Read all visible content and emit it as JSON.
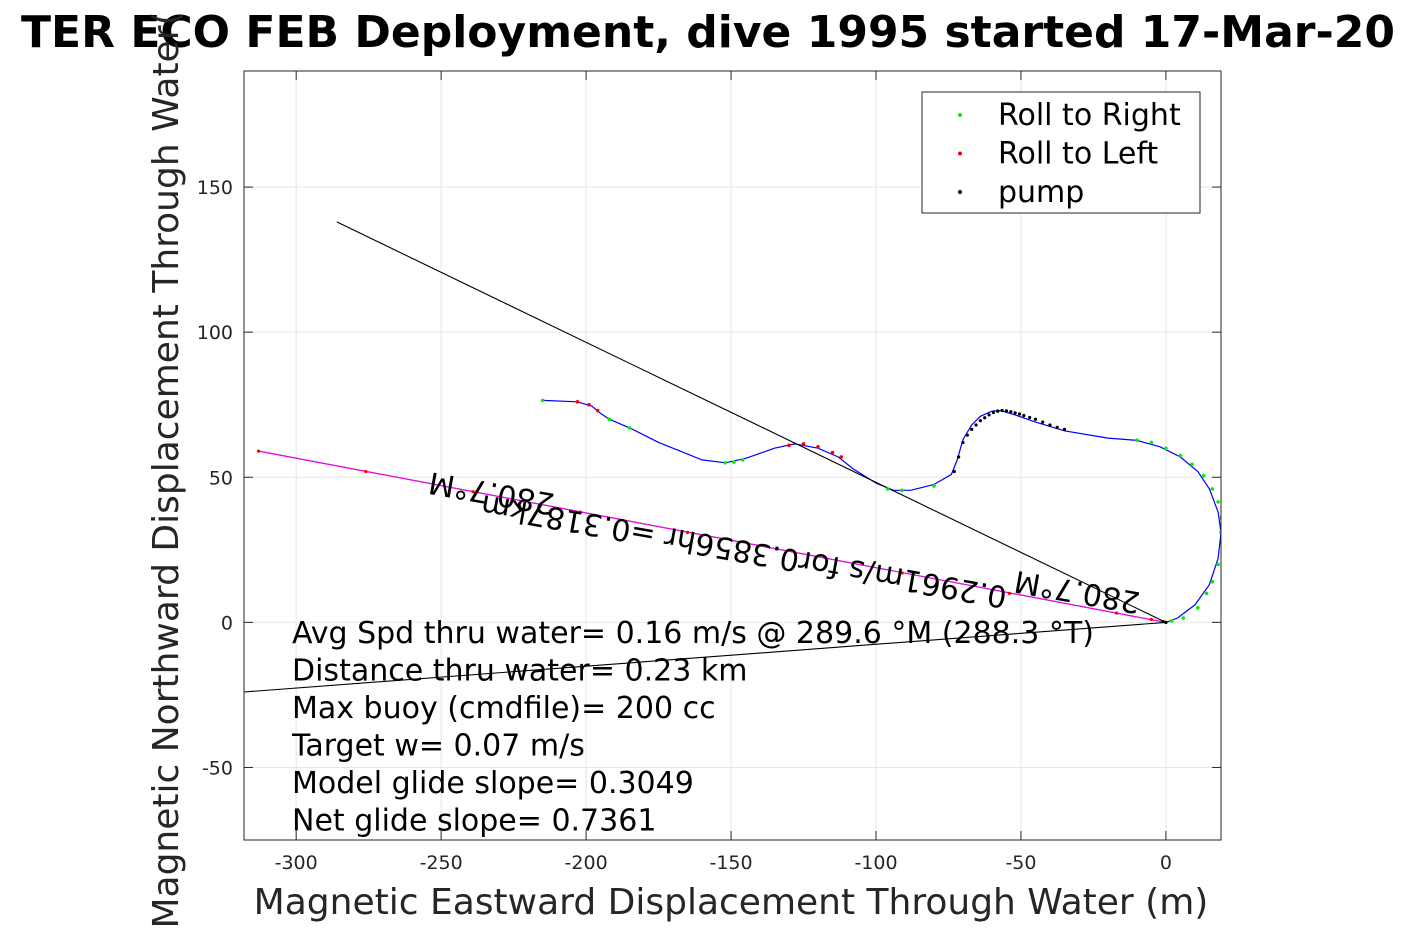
{
  "chart_data": {
    "type": "line",
    "title": "TER ECO FEB Deployment, dive 1995 started 17-Mar-20",
    "xlabel": "Magnetic Eastward Displacement Through Water (m)",
    "ylabel": "Magnetic Northward Displacement Through Water(",
    "xlim": [
      -318,
      19
    ],
    "ylim": [
      -75,
      190
    ],
    "xticks": [
      -300,
      -250,
      -200,
      -150,
      -100,
      -50,
      0
    ],
    "xtick_labels": [
      "-300",
      "-250",
      "-200",
      "-150",
      "-100",
      "-50",
      "0"
    ],
    "yticks": [
      -50,
      0,
      50,
      100,
      150
    ],
    "ytick_labels": [
      "-50",
      "0",
      "50",
      "100",
      "150"
    ],
    "grid": true,
    "legend": {
      "location": "top-right",
      "entries": [
        {
          "label": "Roll to Right",
          "color": "#00ee00"
        },
        {
          "label": "Roll to Left",
          "color": "#ff0000"
        },
        {
          "label": "pump",
          "color": "#000000"
        }
      ]
    },
    "series": [
      {
        "kind": "track",
        "color": "#0000ff",
        "x": [
          -215,
          -203,
          -198,
          -195,
          -192,
          -185,
          -175,
          -160,
          -152,
          -145,
          -135,
          -128,
          -120,
          -113,
          -108,
          -100,
          -94,
          -88,
          -80,
          -74,
          -72,
          -70,
          -67,
          -64,
          -60,
          -57,
          -52,
          -45,
          -35,
          -20,
          -10,
          -2,
          5,
          11,
          15,
          18,
          19,
          18,
          15,
          10,
          4,
          0
        ],
        "y": [
          76.5,
          76,
          74.5,
          72,
          70,
          67,
          62,
          56,
          55,
          56.5,
          60,
          61.5,
          60,
          57,
          53,
          48,
          45.5,
          45.5,
          47.5,
          51,
          56,
          63,
          68,
          71,
          72.8,
          73,
          71.5,
          69,
          66,
          63.5,
          62.7,
          60.5,
          57,
          52,
          46,
          38,
          31,
          22,
          13,
          6,
          1.5,
          0
        ]
      },
      {
        "kind": "heading-line",
        "color": "#000000",
        "x": [
          0,
          -286
        ],
        "y": [
          0,
          138
        ]
      },
      {
        "kind": "heading-line",
        "color": "#000000",
        "x": [
          0,
          -318
        ],
        "y": [
          0,
          -24
        ]
      },
      {
        "kind": "heading-line",
        "color": "#000000",
        "x": [
          0,
          -313
        ],
        "y": [
          0,
          59
        ]
      },
      {
        "kind": "heading-line",
        "color": "#ff00ff",
        "x": [
          0,
          -313
        ],
        "y": [
          0,
          59
        ]
      }
    ],
    "markers": {
      "roll_right": {
        "color": "#00ee00",
        "x": [
          -215,
          -192,
          -185,
          -152,
          -149,
          -146,
          -96,
          -91,
          -80,
          -58,
          -10,
          -5,
          0,
          5,
          9,
          13,
          16,
          18,
          19,
          19,
          18,
          16,
          14,
          11,
          6,
          2
        ],
        "y": [
          76.5,
          70,
          67,
          55,
          55.2,
          56,
          46,
          45.5,
          47,
          72.8,
          62.8,
          62,
          60,
          57.5,
          54.5,
          50.5,
          46,
          41.5,
          36,
          31,
          20,
          14,
          10,
          5,
          1.5,
          0.5
        ]
      },
      "roll_left": {
        "color": "#ff0000",
        "x": [
          -203,
          -199,
          -196,
          -130,
          -125,
          -120,
          -115,
          -112
        ],
        "y": [
          76,
          75,
          73,
          61,
          61.5,
          60.5,
          58.5,
          57
        ],
        "line_x": [
          -313,
          -276,
          -239,
          -202,
          -165,
          -128,
          -91,
          -54,
          -17,
          -5,
          0
        ],
        "line_y": [
          59,
          52,
          45,
          38,
          31,
          24,
          17,
          10,
          3.2,
          1,
          0
        ]
      },
      "pump": {
        "color": "#000000",
        "x": [
          -73,
          -71.5,
          -70,
          -68.5,
          -67,
          -65.5,
          -64,
          -62.5,
          -61,
          -59.5,
          -58,
          -56.5,
          -55,
          -53.5,
          -52,
          -50.5,
          -49,
          -47,
          -45,
          -42.5,
          -40,
          -37.5,
          -35,
          -1,
          0
        ],
        "y": [
          52,
          57,
          62,
          64.5,
          66.5,
          68,
          69.5,
          70.5,
          71.5,
          72.3,
          72.8,
          73,
          72.9,
          72.6,
          72.2,
          71.8,
          71.3,
          70.6,
          70,
          69,
          68,
          67.2,
          66.5,
          0.3,
          0
        ]
      }
    },
    "curve_labels": [
      {
        "text": "280.7°M",
        "x": -232,
        "y": 48,
        "rotation_deg": 190
      },
      {
        "text": "0.3187",
        "x": -167,
        "y": 40,
        "rotation_deg": 190
      }
    ],
    "rotated_labels": [
      {
        "text": "280.7°M",
        "x": -30,
        "y": 14,
        "rotation_deg": 190
      },
      {
        "text": "0.2961m/s for0.3856hr =0.3187km",
        "x": -145,
        "y": 28,
        "rotation_deg": 190
      }
    ],
    "annotations": [
      "Avg Spd thru water=  0.16 m/s @ 289.6 °M (288.3 °T)",
      "Distance thru water=  0.23 km",
      "Max buoy (cmdfile)= 200 cc",
      "Target w= 0.07 m/s",
      "Model glide slope= 0.3049",
      "Net glide slope= 0.7361"
    ]
  }
}
